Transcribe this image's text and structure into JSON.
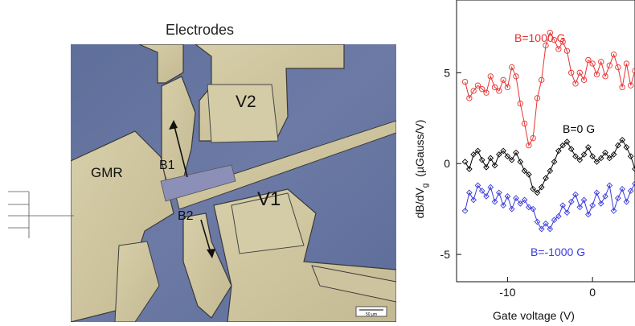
{
  "micrograph": {
    "title": "Electrodes",
    "labels": {
      "gmr": "GMR",
      "v1": "V1",
      "v2": "V2",
      "b1": "B1",
      "b2": "B2"
    },
    "scale_bar": "50 µm"
  },
  "chart_data": {
    "type": "line",
    "xlabel": "Gate voltage  (V)",
    "ylabel": "dB/dV",
    "ylabel_sub": "g",
    "ylabel_units": "(µGauss/V)",
    "xlim": [
      -16,
      5
    ],
    "ylim": [
      -6.5,
      9
    ],
    "xticks": [
      -10,
      0
    ],
    "xtick_labels": [
      "-10",
      "0"
    ],
    "yticks": [
      -5,
      0,
      5
    ],
    "ytick_labels": [
      "-5",
      "0",
      "5"
    ],
    "series": [
      {
        "name": "B=1000  G",
        "color": "#e83030",
        "marker": "circle",
        "x": [
          -15,
          -14.5,
          -14,
          -13.5,
          -13,
          -12.5,
          -12,
          -11.5,
          -11,
          -10.5,
          -10,
          -9.5,
          -9,
          -8.5,
          -8,
          -7.5,
          -7,
          -6.5,
          -6,
          -5.5,
          -5,
          -4.5,
          -4,
          -3.5,
          -3,
          -2.5,
          -2,
          -1.5,
          -1,
          -0.5,
          0,
          0.5,
          1,
          1.5,
          2,
          2.5,
          3,
          3.5,
          4,
          4.5,
          5
        ],
        "values": [
          4.5,
          3.6,
          4.0,
          4.3,
          4.1,
          3.9,
          4.8,
          4.2,
          4.0,
          4.6,
          4.2,
          5.3,
          4.8,
          3.3,
          2.2,
          1.0,
          1.4,
          3.6,
          4.6,
          6.5,
          7.2,
          6.8,
          6.3,
          6.7,
          6.2,
          5.0,
          4.4,
          5.0,
          4.6,
          5.7,
          5.5,
          4.9,
          5.6,
          4.8,
          5.4,
          6.0,
          5.3,
          4.2,
          5.5,
          4.3,
          5.1
        ]
      },
      {
        "name": "B=0  G",
        "color": "#000000",
        "marker": "diamond",
        "x": [
          -15,
          -14.5,
          -14,
          -13.5,
          -13,
          -12.5,
          -12,
          -11.5,
          -11,
          -10.5,
          -10,
          -9.5,
          -9,
          -8.5,
          -8,
          -7.5,
          -7,
          -6.5,
          -6,
          -5.5,
          -5,
          -4.5,
          -4,
          -3.5,
          -3,
          -2.5,
          -2,
          -1.5,
          -1,
          -0.5,
          0,
          0.5,
          1,
          1.5,
          2,
          2.5,
          3,
          3.5,
          4,
          4.5,
          5
        ],
        "values": [
          0.1,
          -0.3,
          0.5,
          0.7,
          0.2,
          -0.2,
          0.3,
          -0.1,
          0.5,
          0.7,
          0.4,
          0.2,
          0.6,
          0.1,
          -0.4,
          -0.6,
          -1.4,
          -1.6,
          -1.3,
          -0.8,
          -0.4,
          0.1,
          0.7,
          1.0,
          1.2,
          0.8,
          0.4,
          0.2,
          0.5,
          0.9,
          0.4,
          0.1,
          0.3,
          0.6,
          0.3,
          0.5,
          1.0,
          1.3,
          0.9,
          0.4,
          -0.3
        ]
      },
      {
        "name": "B=-1000  G",
        "color": "#3a3ae0",
        "marker": "diamond",
        "x": [
          -15,
          -14.5,
          -14,
          -13.5,
          -13,
          -12.5,
          -12,
          -11.5,
          -11,
          -10.5,
          -10,
          -9.5,
          -9,
          -8.5,
          -8,
          -7.5,
          -7,
          -6.5,
          -6,
          -5.5,
          -5,
          -4.5,
          -4,
          -3.5,
          -3,
          -2.5,
          -2,
          -1.5,
          -1,
          -0.5,
          0,
          0.5,
          1,
          1.5,
          2,
          2.5,
          3,
          3.5,
          4,
          4.5,
          5
        ],
        "values": [
          -2.6,
          -1.6,
          -2.0,
          -1.2,
          -1.5,
          -1.8,
          -1.3,
          -2.1,
          -1.6,
          -2.3,
          -1.8,
          -2.5,
          -1.9,
          -2.2,
          -2.0,
          -2.4,
          -2.5,
          -3.2,
          -3.6,
          -3.3,
          -3.6,
          -3.1,
          -2.9,
          -2.3,
          -2.7,
          -2.1,
          -1.7,
          -2.4,
          -2.0,
          -2.8,
          -2.3,
          -1.6,
          -2.2,
          -1.8,
          -1.2,
          -2.6,
          -1.9,
          -1.4,
          -2.1,
          -1.5,
          -1.1
        ]
      }
    ]
  }
}
